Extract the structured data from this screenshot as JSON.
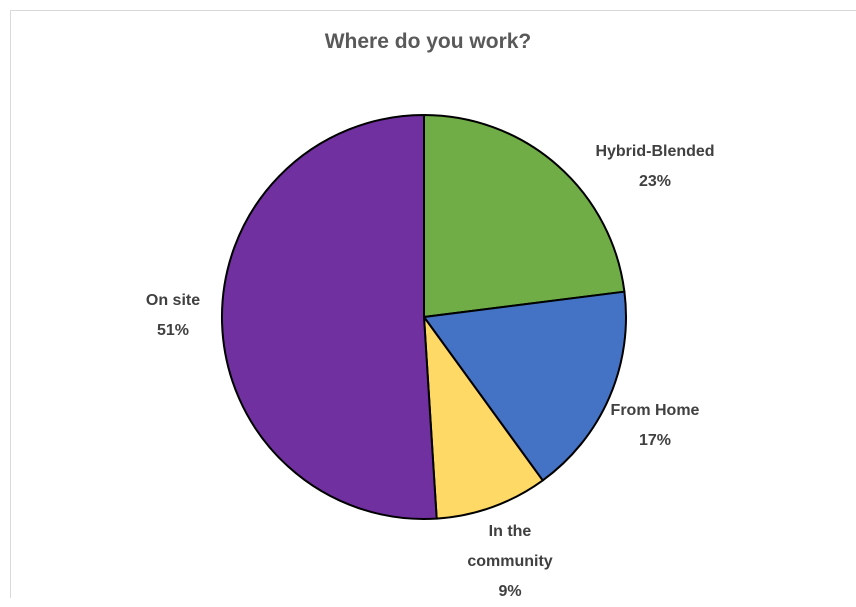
{
  "chart_data": {
    "type": "pie",
    "title": "Where do you work?",
    "slices": [
      {
        "label": "Hybrid-Blended",
        "label_lines": [
          "Hybrid-Blended"
        ],
        "value": 23,
        "value_label": "23%",
        "color": "#70ad47"
      },
      {
        "label": "From Home",
        "label_lines": [
          "From Home"
        ],
        "value": 17,
        "value_label": "17%",
        "color": "#4472c4"
      },
      {
        "label": "In the community",
        "label_lines": [
          "In the",
          "community"
        ],
        "value": 9,
        "value_label": "9%",
        "color": "#ffd966"
      },
      {
        "label": "On site",
        "label_lines": [
          "On site"
        ],
        "value": 51,
        "value_label": "51%",
        "color": "#7030a0"
      }
    ],
    "start_angle_deg": 0,
    "direction": "clockwise",
    "legend": "none",
    "data_labels": "outside"
  }
}
